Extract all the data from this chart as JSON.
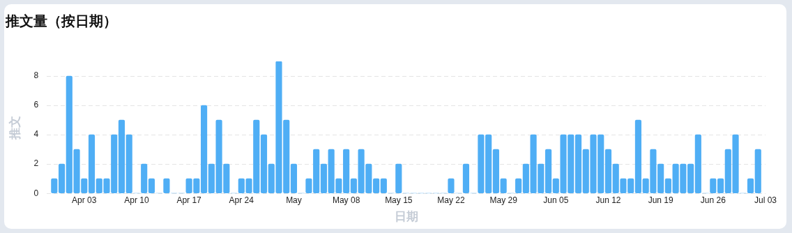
{
  "chart_data": {
    "type": "bar",
    "title": "推文量（按日期）",
    "xlabel": "日期",
    "ylabel": "推文",
    "color": "#4faef5",
    "x": [
      "--03-30",
      "--03-31",
      "--04-01",
      "--04-02",
      "--04-03",
      "--04-04",
      "--04-05",
      "--04-06",
      "--04-07",
      "--04-08",
      "--04-09",
      "--04-10",
      "--04-11",
      "--04-12",
      "--04-13",
      "--04-14",
      "--04-15",
      "--04-16",
      "--04-17",
      "--04-18",
      "--04-19",
      "--04-20",
      "--04-21",
      "--04-22",
      "--04-23",
      "--04-24",
      "--04-25",
      "--04-26",
      "--04-27",
      "--04-28",
      "--04-29",
      "--04-30",
      "--05-01",
      "--05-02",
      "--05-03",
      "--05-04",
      "--05-05",
      "--05-06",
      "--05-07",
      "--05-08",
      "--05-09",
      "--05-10",
      "--05-11",
      "--05-12",
      "--05-13",
      "--05-14",
      "--05-15",
      "--05-16",
      "--05-17",
      "--05-18",
      "--05-19",
      "--05-20",
      "--05-21",
      "--05-22",
      "--05-23",
      "--05-24",
      "--05-25",
      "--05-26",
      "--05-27",
      "--05-28",
      "--05-29",
      "--05-30",
      "--05-31",
      "--06-01",
      "--06-02",
      "--06-03",
      "--06-04",
      "--06-05",
      "--06-06",
      "--06-07",
      "--06-08",
      "--06-09",
      "--06-10",
      "--06-11",
      "--06-12",
      "--06-13",
      "--06-14",
      "--06-15",
      "--06-16",
      "--06-17",
      "--06-18",
      "--06-19",
      "--06-20",
      "--06-21",
      "--06-22",
      "--06-23",
      "--06-24",
      "--06-25",
      "--06-26",
      "--06-27",
      "--06-28",
      "--06-29",
      "--06-30",
      "--07-01",
      "--07-02"
    ],
    "values": [
      1,
      2,
      8,
      3,
      1,
      4,
      1,
      1,
      4,
      5,
      4,
      0,
      2,
      1,
      0,
      1,
      0,
      0,
      1,
      1,
      6,
      2,
      5,
      2,
      0,
      1,
      1,
      5,
      4,
      2,
      9,
      5,
      2,
      0,
      1,
      3,
      2,
      3,
      1,
      3,
      1,
      3,
      2,
      1,
      1,
      0,
      2,
      0,
      0,
      0,
      0,
      0,
      0,
      1,
      0,
      2,
      0,
      4,
      4,
      3,
      1,
      0,
      1,
      2,
      4,
      2,
      3,
      1,
      4,
      4,
      4,
      3,
      4,
      4,
      3,
      2,
      1,
      1,
      5,
      1,
      3,
      2,
      1,
      2,
      2,
      2,
      4,
      0,
      1,
      1,
      3,
      4,
      0,
      1,
      3
    ],
    "xlim": [
      "--03-29",
      "--07-03"
    ],
    "xticks": [
      {
        "value": "--04-03",
        "label": "Apr 03"
      },
      {
        "value": "--04-10",
        "label": "Apr 10"
      },
      {
        "value": "--04-17",
        "label": "Apr 17"
      },
      {
        "value": "--04-24",
        "label": "Apr 24"
      },
      {
        "value": "--05-01",
        "label": "May"
      },
      {
        "value": "--05-08",
        "label": "May 08"
      },
      {
        "value": "--05-15",
        "label": "May 15"
      },
      {
        "value": "--05-22",
        "label": "May 22"
      },
      {
        "value": "--05-29",
        "label": "May 29"
      },
      {
        "value": "--06-05",
        "label": "Jun 05"
      },
      {
        "value": "--06-12",
        "label": "Jun 12"
      },
      {
        "value": "--06-19",
        "label": "Jun 19"
      },
      {
        "value": "--06-26",
        "label": "Jun 26"
      },
      {
        "value": "--07-03",
        "label": "Jul 03"
      }
    ],
    "ylim": [
      0,
      9
    ],
    "yticks": [
      0,
      2,
      4,
      6,
      8
    ],
    "grid": "y",
    "legend": false
  }
}
